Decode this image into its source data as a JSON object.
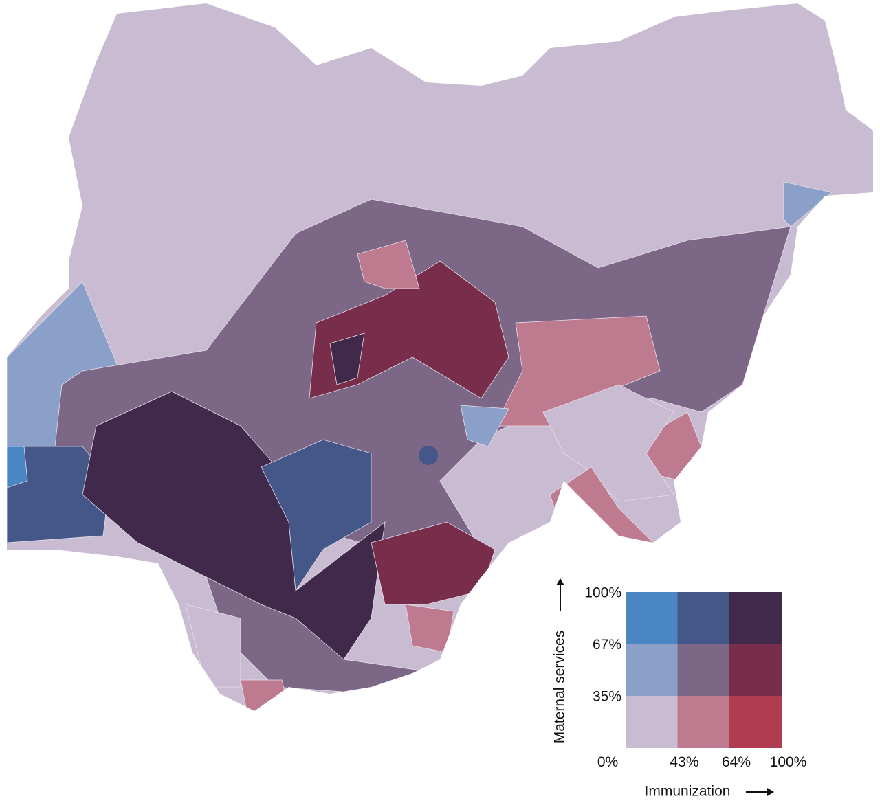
{
  "legend": {
    "y_label": "Maternal services",
    "x_label": "Immunization",
    "y_ticks": [
      "100%",
      "67%",
      "35%"
    ],
    "x_ticks": [
      "0%",
      "43%",
      "64%",
      "100%"
    ],
    "colors": [
      [
        "#4a86c4",
        "#455788",
        "#40294a"
      ],
      [
        "#8aa0c8",
        "#7d6786",
        "#782e4a"
      ],
      [
        "#c9bbd1",
        "#be7a8e",
        "#b03c50"
      ]
    ]
  }
}
